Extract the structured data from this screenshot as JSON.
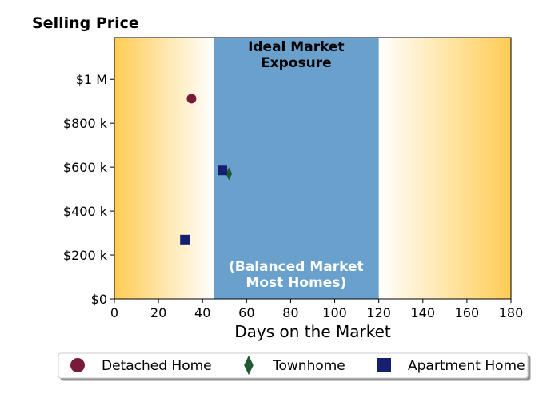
{
  "colors": {
    "band": "#6aa0cc",
    "gradient_edge": "#ffcc55",
    "gradient_mid": "#ffffff",
    "detached": "#7a1a3a",
    "townhome": "#1f5a32",
    "apartment": "#141f6e"
  },
  "chart_data": {
    "type": "scatter",
    "title": "Selling Price",
    "xlabel": "Days on the Market",
    "ylabel": "",
    "xlim": [
      0,
      180
    ],
    "ylim": [
      0,
      1190000
    ],
    "x_ticks": [
      0,
      20,
      40,
      60,
      80,
      100,
      120,
      140,
      160,
      180
    ],
    "x_tick_labels": [
      "0",
      "20",
      "40",
      "60",
      "80",
      "100",
      "120",
      "140",
      "160",
      "180"
    ],
    "y_ticks": [
      0,
      200000,
      400000,
      600000,
      800000,
      1000000
    ],
    "y_tick_labels": [
      "$0",
      "$200 k",
      "$400 k",
      "$600 k",
      "$800 k",
      "$1 M"
    ],
    "band": {
      "x_range": [
        45,
        120
      ],
      "label_top": [
        "Ideal Market",
        "Exposure"
      ],
      "label_bottom": [
        "(Balanced Market",
        "Most Homes)"
      ]
    },
    "background_gradient": "warm yellow at both edges fading to white toward the central band",
    "grid": false,
    "legend_position": "bottom",
    "series": [
      {
        "name": "Detached Home",
        "marker": "circle",
        "color": "#7a1a3a",
        "points": [
          {
            "x": 35,
            "y": 912000
          }
        ]
      },
      {
        "name": "Townhome",
        "marker": "diamond",
        "color": "#1f5a32",
        "points": [
          {
            "x": 52,
            "y": 570000
          }
        ]
      },
      {
        "name": "Apartment Home",
        "marker": "square",
        "color": "#141f6e",
        "points": [
          {
            "x": 49,
            "y": 585000
          },
          {
            "x": 32,
            "y": 270000
          }
        ]
      }
    ]
  }
}
